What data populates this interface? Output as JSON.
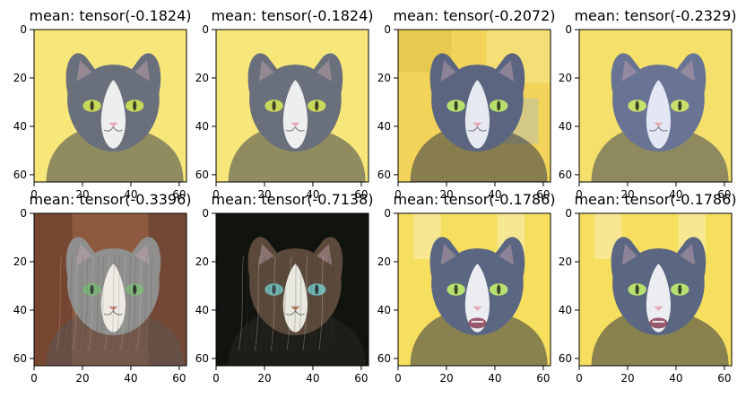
{
  "figure": {
    "panels": [
      {
        "title": "mean: tensor(-0.1824)",
        "image": "gray-white-cat-portrait-yellow-background",
        "image_variant": "a",
        "tone": {
          "bg": "#f7e67a",
          "fur": "#6a6f7c",
          "white": "#f4f4f4",
          "eye": "#c7d85a",
          "nose": "#e7a7b8",
          "dark": "#3e414a"
        }
      },
      {
        "title": "mean: tensor(-0.1824)",
        "image": "gray-white-cat-portrait-yellow-background",
        "image_variant": "a",
        "tone": {
          "bg": "#f7e67a",
          "fur": "#6a6f7c",
          "white": "#f4f4f4",
          "eye": "#c7d85a",
          "nose": "#e7a7b8",
          "dark": "#3e414a"
        }
      },
      {
        "title": "mean: tensor(-0.2072)",
        "image": "gray-white-cat-portrait-window-background",
        "image_variant": "b",
        "tone": {
          "bg": "#f2d45a",
          "fur": "#5b6580",
          "white": "#eef0f6",
          "eye": "#b7df6b",
          "nose": "#e5a8b6",
          "dark": "#2f3546"
        }
      },
      {
        "title": "mean: tensor(-0.2329)",
        "image": "gray-white-cat-portrait-yellow-background",
        "image_variant": "c",
        "tone": {
          "bg": "#f4e06a",
          "fur": "#697394",
          "white": "#e9edf8",
          "eye": "#c7e06b",
          "nose": "#e6a9b7",
          "dark": "#3a4156"
        }
      },
      {
        "title": "mean: tensor(-0.3396)",
        "image": "longhair-tabby-cat-portrait-warm-background",
        "image_variant": "d",
        "tone": {
          "bg": "#8e5a3f",
          "fur": "#8f8f8e",
          "white": "#f3f0ea",
          "eye": "#7fb37a",
          "nose": "#c58a7e",
          "dark": "#5d5a57"
        }
      },
      {
        "title": "mean: tensor(-0.7138)",
        "image": "longhair-tabby-cat-portrait-dark-background",
        "image_variant": "e",
        "tone": {
          "bg": "#1b1e18",
          "fur": "#5b4a3b",
          "white": "#f0efe9",
          "eye": "#6fb3b2",
          "nose": "#b17c66",
          "dark": "#2a2724"
        }
      },
      {
        "title": "mean: tensor(-0.1786)",
        "image": "gray-white-cat-portrait-open-mouth-yellow-background",
        "image_variant": "f",
        "tone": {
          "bg": "#f6df5e",
          "fur": "#5b6683",
          "white": "#f4f4f6",
          "eye": "#b8e06e",
          "nose": "#e6a8b8",
          "dark": "#2f3342"
        }
      },
      {
        "title": "mean: tensor(-0.1786)",
        "image": "gray-white-cat-portrait-open-mouth-yellow-background",
        "image_variant": "f",
        "tone": {
          "bg": "#f6df5e",
          "fur": "#5b6683",
          "white": "#f4f4f6",
          "eye": "#b8e06e",
          "nose": "#e6a8b8",
          "dark": "#2f3342"
        }
      }
    ],
    "x_ticks": [
      "0",
      "20",
      "40",
      "60"
    ],
    "y_ticks": [
      "0",
      "20",
      "40",
      "60"
    ]
  }
}
